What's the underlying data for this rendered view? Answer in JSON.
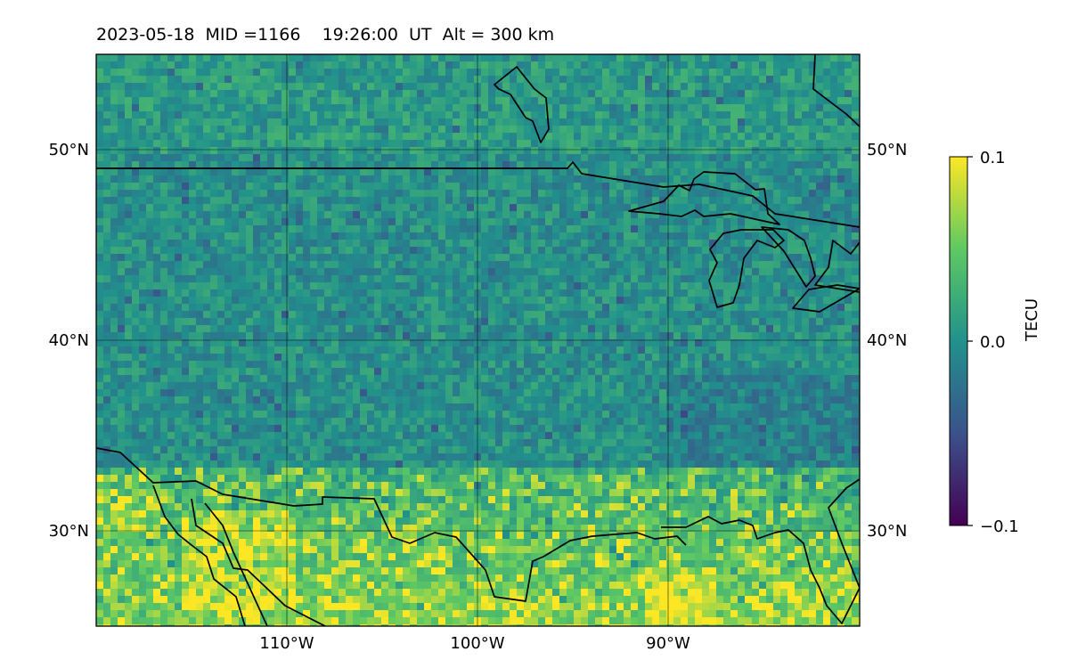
{
  "header": {
    "title": "2023-05-18  MID =1166    19:26:00  UT  Alt = 300 km"
  },
  "map": {
    "lat_labels": [
      "50°N",
      "40°N",
      "30°N"
    ],
    "lon_labels": [
      "110°W",
      "100°W",
      "90°W"
    ],
    "lat_range": [
      25,
      55
    ],
    "lon_range": [
      -120,
      -80
    ]
  },
  "colorbar": {
    "label": "TECU",
    "ticks": [
      "0.1",
      "0.0",
      "−0.1"
    ],
    "range": [
      -0.1,
      0.1
    ],
    "colormap": "viridis"
  },
  "colors": {
    "frame": "#000000",
    "coastline": "#000000",
    "grid": "#000000",
    "low": "#440154",
    "mid": "#21918c",
    "high": "#fde725"
  }
}
